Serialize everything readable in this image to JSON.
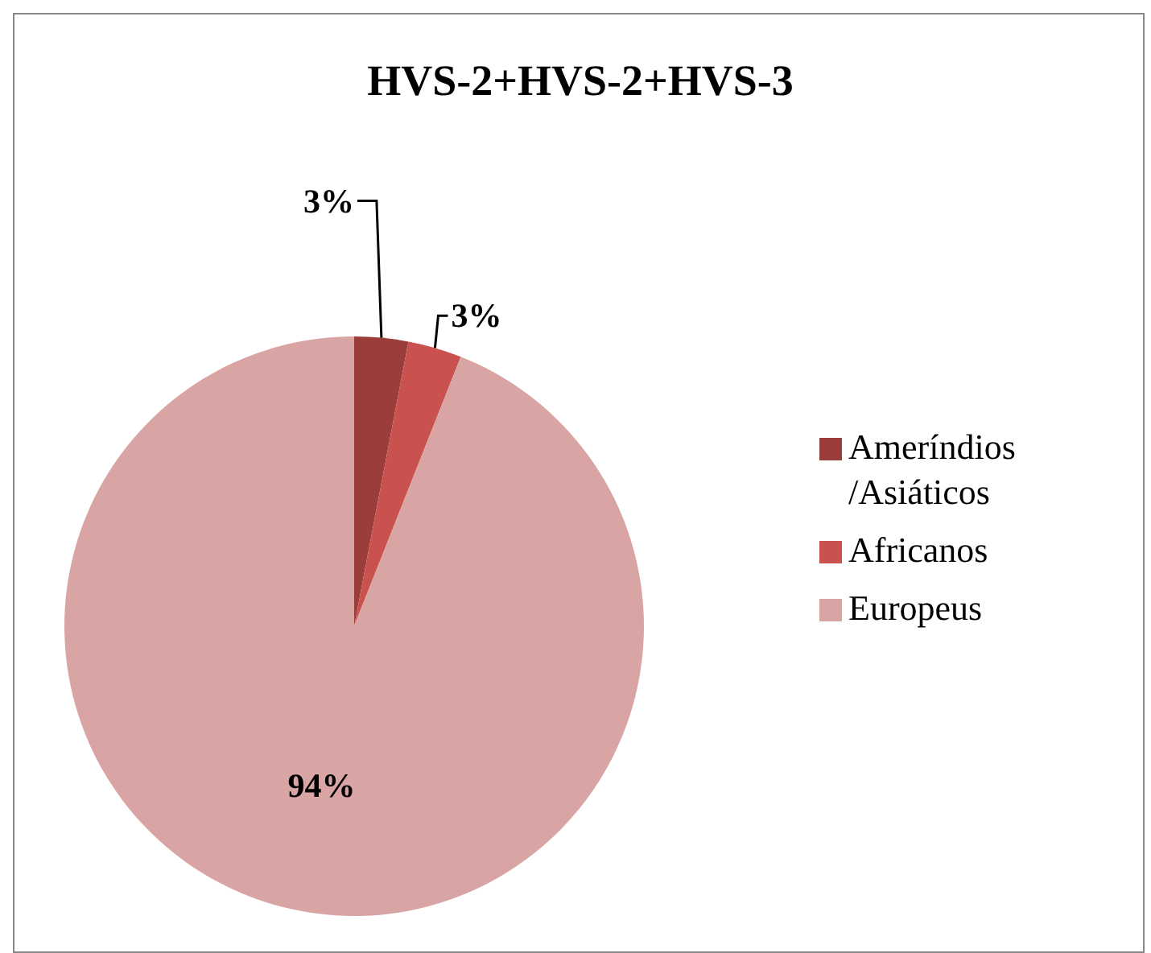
{
  "chart_data": {
    "type": "pie",
    "title": "HVS-2+HVS-2+HVS-3",
    "categories": [
      "Ameríndios /Asiáticos",
      "Africanos",
      "Europeus"
    ],
    "values": [
      3,
      3,
      94
    ],
    "colors": [
      "#9b3d3b",
      "#c9524f",
      "#d9a5a4"
    ],
    "value_labels": [
      "3%",
      "3%",
      "94%"
    ],
    "legend": "right"
  }
}
